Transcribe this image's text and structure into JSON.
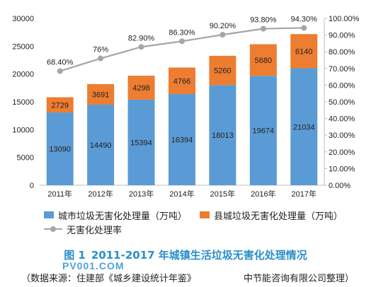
{
  "chart_data": {
    "type": "bar",
    "stacked": true,
    "categories": [
      "2011年",
      "2012年",
      "2013年",
      "2014年",
      "2015年",
      "2016年",
      "2017年"
    ],
    "series": [
      {
        "name": "城市垃圾无害化处理量（万吨）",
        "values": [
          13090,
          14490,
          15394,
          16394,
          18013,
          19674,
          21034
        ],
        "color": "#5b9bd5",
        "axis": "left"
      },
      {
        "name": "县城垃圾无害化处理量（万吨）",
        "values": [
          2729,
          3691,
          4298,
          4766,
          5260,
          5680,
          6140
        ],
        "color": "#ed7d31",
        "axis": "left"
      },
      {
        "name": "无害化处理率",
        "type": "line",
        "values": [
          68.4,
          76,
          82.9,
          86.3,
          90.2,
          93.8,
          94.3
        ],
        "labels": [
          "68.40%",
          "76%",
          "82.90%",
          "86.30%",
          "90.20%",
          "93.80%",
          "94.30%"
        ],
        "color": "#a6a6a6",
        "axis": "right"
      }
    ],
    "y_left": {
      "min": 0,
      "max": 30000,
      "ticks": [
        "0",
        "5000",
        "10000",
        "15000",
        "20000",
        "25000",
        "30000"
      ]
    },
    "y_right": {
      "min": 0,
      "max": 100,
      "ticks": [
        "0.00%",
        "10.00%",
        "20.00%",
        "30.00%",
        "40.00%",
        "50.00%",
        "60.00%",
        "70.00%",
        "80.00%",
        "90.00%",
        "100.00%"
      ]
    },
    "grid": false,
    "legend_position": "bottom"
  },
  "caption": {
    "figure": "图 1",
    "title": "2011-2017 年城镇生活垃圾无害化处理情况"
  },
  "watermark": "PV001.COM",
  "source": {
    "left": "（数据来源：住建部《城乡建设统计年鉴》",
    "right": "中节能咨询有限公司整理）"
  }
}
